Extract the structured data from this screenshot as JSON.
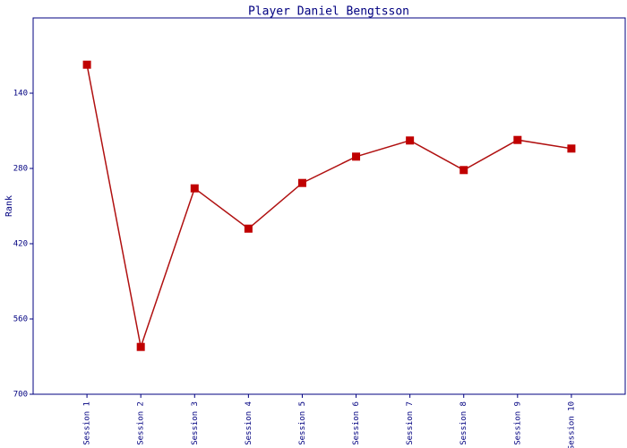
{
  "chart_data": {
    "type": "line",
    "title": "Player Daniel Bengtsson",
    "y_label": "Rank",
    "categories": [
      "Session 1",
      "Session 2",
      "Session 3",
      "Session 4",
      "Session 5",
      "Session 6",
      "Session 7",
      "Session 8",
      "Session 9",
      "Session 10"
    ],
    "values": [
      87,
      612,
      317,
      392,
      307,
      258,
      228,
      283,
      227,
      243
    ],
    "color": "#c00000",
    "line_color": "#b01010",
    "ylim": [
      0,
      700
    ],
    "yticks": [
      140,
      280,
      420,
      560,
      700
    ],
    "y_inverted": true,
    "grid": false
  }
}
